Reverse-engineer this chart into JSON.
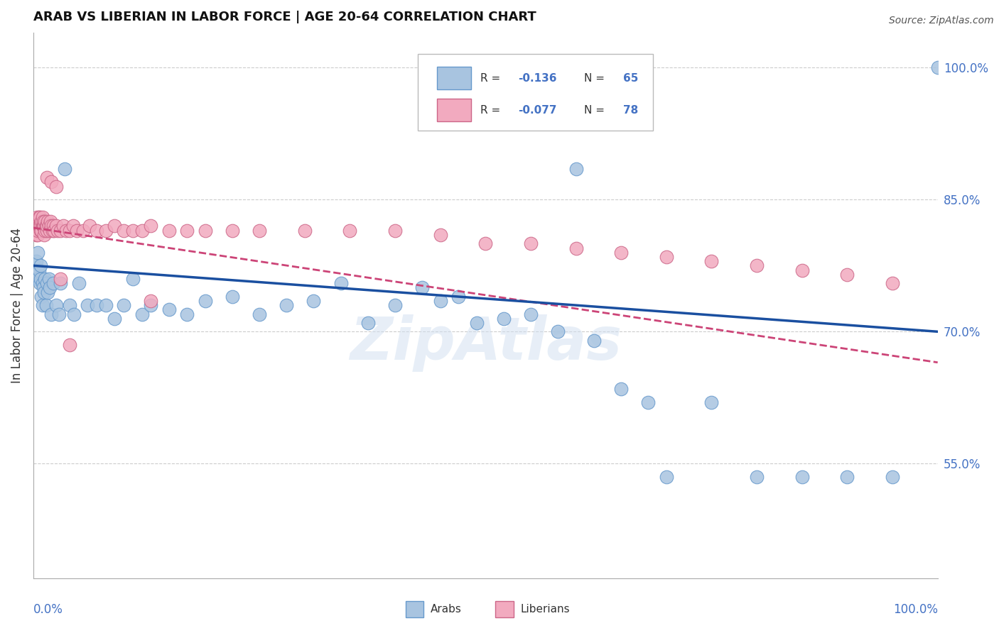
{
  "title": "ARAB VS LIBERIAN IN LABOR FORCE | AGE 20-64 CORRELATION CHART",
  "source": "Source: ZipAtlas.com",
  "ylabel": "In Labor Force | Age 20-64",
  "y_tick_labels": [
    "100.0%",
    "85.0%",
    "70.0%",
    "55.0%"
  ],
  "y_tick_values": [
    1.0,
    0.85,
    0.7,
    0.55
  ],
  "xlim": [
    0.0,
    1.0
  ],
  "ylim": [
    0.42,
    1.04
  ],
  "arab_color": "#a8c4e0",
  "arab_edge_color": "#6699cc",
  "arab_line_color": "#1a4fa0",
  "liberian_color": "#f2aabf",
  "liberian_edge_color": "#cc6688",
  "liberian_line_color": "#cc4477",
  "watermark": "ZipAtlas",
  "legend_R_arab": "-0.136",
  "legend_N_arab": "65",
  "legend_R_lib": "-0.077",
  "legend_N_lib": "78",
  "arab_x": [
    0.002,
    0.003,
    0.004,
    0.005,
    0.005,
    0.006,
    0.007,
    0.008,
    0.008,
    0.009,
    0.01,
    0.01,
    0.011,
    0.012,
    0.013,
    0.014,
    0.015,
    0.016,
    0.017,
    0.018,
    0.02,
    0.022,
    0.025,
    0.028,
    0.03,
    0.035,
    0.04,
    0.045,
    0.05,
    0.06,
    0.07,
    0.08,
    0.09,
    0.1,
    0.11,
    0.12,
    0.13,
    0.15,
    0.17,
    0.19,
    0.22,
    0.25,
    0.28,
    0.31,
    0.34,
    0.37,
    0.4,
    0.43,
    0.45,
    0.47,
    0.49,
    0.52,
    0.55,
    0.58,
    0.6,
    0.62,
    0.65,
    0.68,
    0.7,
    0.75,
    0.8,
    0.85,
    0.9,
    0.95,
    1.0
  ],
  "arab_y": [
    0.775,
    0.78,
    0.77,
    0.76,
    0.79,
    0.77,
    0.755,
    0.76,
    0.775,
    0.74,
    0.755,
    0.73,
    0.75,
    0.745,
    0.76,
    0.73,
    0.755,
    0.745,
    0.76,
    0.75,
    0.72,
    0.755,
    0.73,
    0.72,
    0.755,
    0.885,
    0.73,
    0.72,
    0.755,
    0.73,
    0.73,
    0.73,
    0.715,
    0.73,
    0.76,
    0.72,
    0.73,
    0.725,
    0.72,
    0.735,
    0.74,
    0.72,
    0.73,
    0.735,
    0.755,
    0.71,
    0.73,
    0.75,
    0.735,
    0.74,
    0.71,
    0.715,
    0.72,
    0.7,
    0.885,
    0.69,
    0.635,
    0.62,
    0.535,
    0.62,
    0.535,
    0.535,
    0.535,
    0.535,
    1.0
  ],
  "liberian_x": [
    0.001,
    0.002,
    0.003,
    0.003,
    0.004,
    0.004,
    0.005,
    0.005,
    0.005,
    0.006,
    0.006,
    0.007,
    0.007,
    0.008,
    0.008,
    0.009,
    0.009,
    0.01,
    0.01,
    0.011,
    0.011,
    0.012,
    0.012,
    0.013,
    0.013,
    0.014,
    0.015,
    0.015,
    0.016,
    0.017,
    0.018,
    0.019,
    0.02,
    0.021,
    0.022,
    0.023,
    0.025,
    0.027,
    0.03,
    0.033,
    0.036,
    0.04,
    0.044,
    0.048,
    0.055,
    0.062,
    0.07,
    0.08,
    0.09,
    0.1,
    0.11,
    0.12,
    0.13,
    0.15,
    0.17,
    0.19,
    0.22,
    0.25,
    0.3,
    0.35,
    0.4,
    0.45,
    0.5,
    0.55,
    0.6,
    0.65,
    0.7,
    0.75,
    0.8,
    0.85,
    0.9,
    0.95,
    0.13,
    0.015,
    0.02,
    0.025,
    0.03,
    0.04
  ],
  "liberian_y": [
    0.815,
    0.82,
    0.825,
    0.81,
    0.82,
    0.83,
    0.825,
    0.81,
    0.815,
    0.82,
    0.83,
    0.82,
    0.83,
    0.82,
    0.815,
    0.825,
    0.815,
    0.82,
    0.83,
    0.82,
    0.825,
    0.81,
    0.82,
    0.825,
    0.815,
    0.82,
    0.815,
    0.82,
    0.825,
    0.82,
    0.815,
    0.825,
    0.82,
    0.815,
    0.82,
    0.815,
    0.82,
    0.815,
    0.815,
    0.82,
    0.815,
    0.815,
    0.82,
    0.815,
    0.815,
    0.82,
    0.815,
    0.815,
    0.82,
    0.815,
    0.815,
    0.815,
    0.82,
    0.815,
    0.815,
    0.815,
    0.815,
    0.815,
    0.815,
    0.815,
    0.815,
    0.81,
    0.8,
    0.8,
    0.795,
    0.79,
    0.785,
    0.78,
    0.775,
    0.77,
    0.765,
    0.755,
    0.735,
    0.875,
    0.87,
    0.865,
    0.76,
    0.685
  ]
}
